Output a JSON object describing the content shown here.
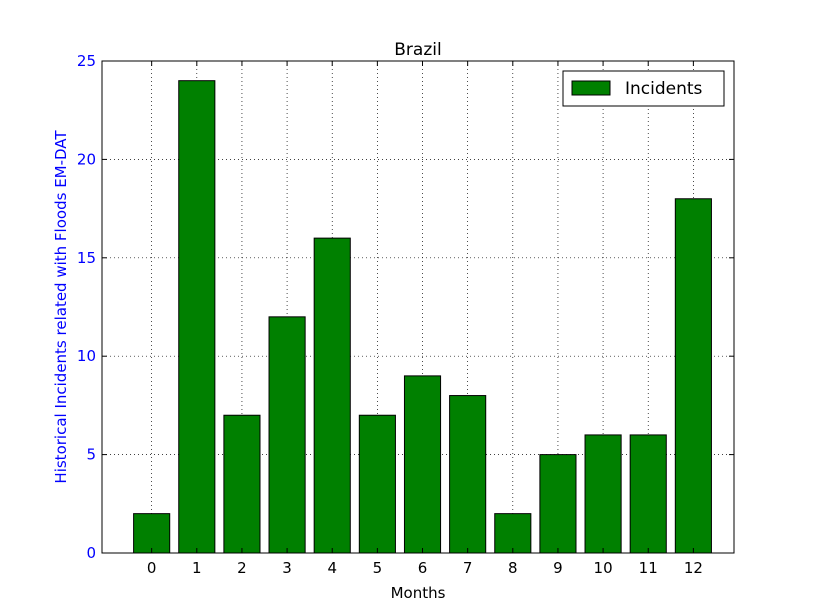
{
  "chart_data": {
    "type": "bar",
    "title": "Brazil",
    "xlabel": "Months",
    "ylabel": "Historical Incidents related with Floods EM-DAT",
    "categories": [
      "0",
      "1",
      "2",
      "3",
      "4",
      "5",
      "6",
      "7",
      "8",
      "9",
      "10",
      "11",
      "12"
    ],
    "series": [
      {
        "name": "Incidents",
        "values": [
          2,
          24,
          7,
          12,
          16,
          7,
          9,
          8,
          2,
          5,
          6,
          6,
          18
        ]
      }
    ],
    "ylim": [
      0,
      25
    ],
    "yticks": [
      "0",
      "5",
      "10",
      "15",
      "20",
      "25"
    ],
    "grid": true,
    "legend_position": "top-right",
    "bar_color": "#008000",
    "ylabel_color": "#0000ff"
  }
}
